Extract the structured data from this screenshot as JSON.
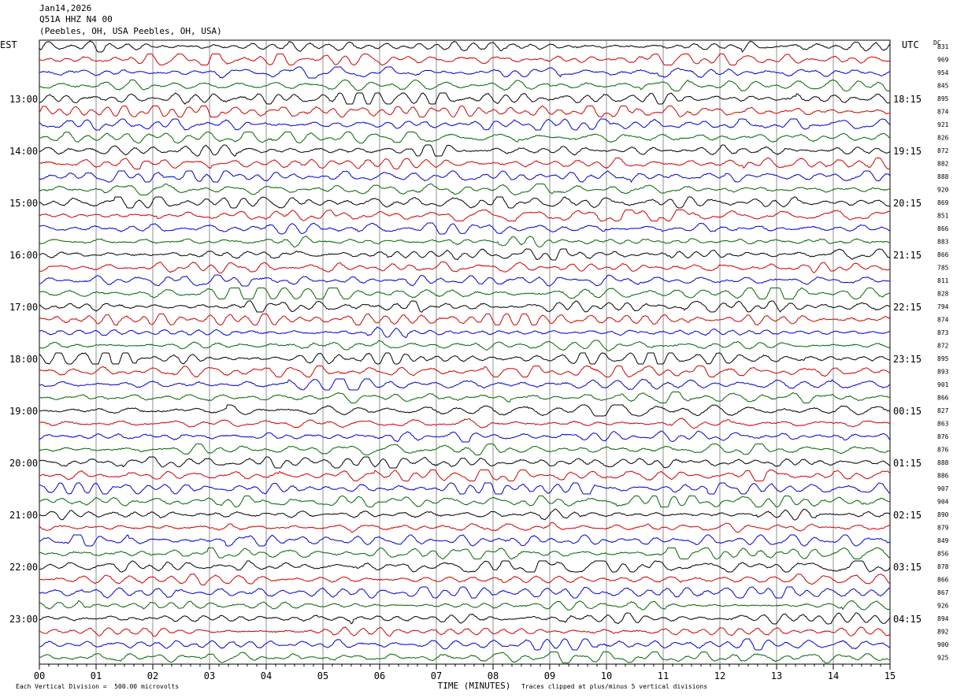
{
  "header": {
    "date": "Jan14,2026",
    "station": "Q51A HHZ N4 00",
    "location": "(Peebles, OH, USA Peebles, OH, USA)"
  },
  "chart_data": {
    "type": "line",
    "title": "",
    "left_axis_label": "EST",
    "right_axis_label": "UTC",
    "dc_label": "DC",
    "xlabel": "TIME (MINUTES)",
    "xlim": [
      0,
      15
    ],
    "x_ticks": [
      "00",
      "01",
      "02",
      "03",
      "04",
      "05",
      "06",
      "07",
      "08",
      "09",
      "10",
      "11",
      "12",
      "13",
      "14",
      "15"
    ],
    "grid": true,
    "trace_colors": [
      "#000000",
      "#cc0000",
      "#0000cc",
      "#006600"
    ],
    "hour_labels_est": [
      "13:00",
      "14:00",
      "15:00",
      "16:00",
      "17:00",
      "18:00",
      "19:00",
      "20:00",
      "21:00",
      "22:00",
      "23:00"
    ],
    "hour_labels_utc": [
      "18:15",
      "19:15",
      "20:15",
      "21:15",
      "22:15",
      "23:15",
      "00:15",
      "01:15",
      "02:15",
      "03:15",
      "04:15"
    ],
    "dc_offsets": [
      831,
      969,
      954,
      845,
      895,
      874,
      921,
      826,
      872,
      882,
      888,
      920,
      869,
      851,
      866,
      883,
      866,
      785,
      811,
      828,
      794,
      874,
      873,
      872,
      895,
      893,
      901,
      866,
      827,
      863,
      876,
      876,
      888,
      886,
      907,
      904,
      890,
      879,
      849,
      856,
      878,
      866,
      867,
      926,
      894,
      892,
      900,
      925
    ],
    "footer_left": "Each Vertical Division =  500.00 microvolts",
    "footer_right": "Traces clipped at plus/minus 5 vertical divisions"
  }
}
